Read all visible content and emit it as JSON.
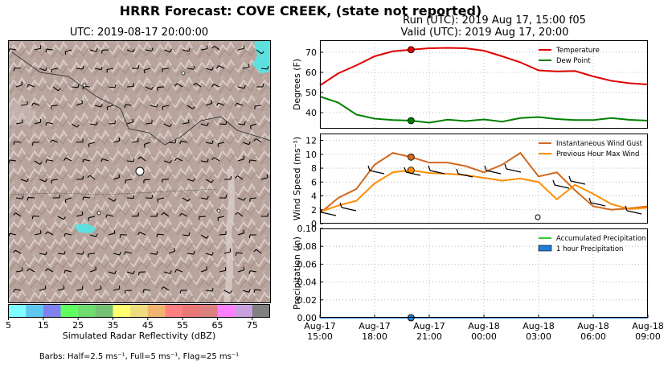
{
  "header": {
    "title": "HRRR Forecast: COVE CREEK, (state not reported)",
    "run": "Run (UTC): 2019 Aug 17, 15:00 f05",
    "valid": "Valid (UTC): 2019 Aug 17, 20:00"
  },
  "map": {
    "title": "UTC: 2019-08-17 20:00:00",
    "colorbar_label": "Simulated Radar Reflectivity (dBZ)",
    "colorbar_ticks": [
      "5",
      "15",
      "25",
      "35",
      "45",
      "55",
      "65",
      "75"
    ],
    "colorbar_colors": [
      "#80ffff",
      "#60c8f0",
      "#8080f0",
      "#60ff60",
      "#70dc70",
      "#74c074",
      "#ffff70",
      "#f0dc80",
      "#f0b470",
      "#ff8080",
      "#e87878",
      "#dc8080",
      "#ff80ff",
      "#c8a0e0",
      "#808080"
    ],
    "barbs_note": "Barbs: Half=2.5 ms⁻¹, Full=5 ms⁻¹, Flag=25 ms⁻¹"
  },
  "chart_data": [
    {
      "type": "line",
      "ylabel": "Degrees (F)",
      "ylim": [
        32,
        76
      ],
      "yticks": [
        40,
        50,
        60,
        70
      ],
      "x_hours": [
        0,
        1,
        2,
        3,
        4,
        5,
        6,
        7,
        8,
        9,
        10,
        11,
        12,
        13,
        14,
        15,
        16,
        17,
        18
      ],
      "marker_hour": 5,
      "legend": "top-right",
      "grid": true,
      "series": [
        {
          "name": "Temperature",
          "color": "#e00000",
          "values": [
            53.5,
            59.5,
            63.5,
            68,
            70.5,
            71.3,
            72,
            72.2,
            72,
            70.8,
            68,
            65,
            61,
            60.5,
            60.7,
            58,
            55.8,
            54.6,
            54
          ]
        },
        {
          "name": "Dew Point",
          "color": "#008000",
          "values": [
            48,
            45,
            39,
            37,
            36.3,
            36,
            35,
            36.5,
            35.8,
            36.6,
            35.5,
            37.3,
            37.8,
            36.8,
            36.3,
            36.3,
            37.3,
            36.4,
            36
          ]
        }
      ]
    },
    {
      "type": "line",
      "ylabel": "Wind Speed (ms⁻¹)",
      "ylim": [
        0,
        13
      ],
      "yticks": [
        0,
        2,
        4,
        6,
        8,
        10,
        12
      ],
      "x_hours": [
        0,
        1,
        2,
        3,
        4,
        5,
        6,
        7,
        8,
        9,
        10,
        11,
        12,
        13,
        14,
        15,
        16,
        17,
        18
      ],
      "marker_hour": 5,
      "legend": "top-right",
      "grid": true,
      "series": [
        {
          "name": "Instantaneous Wind Gust",
          "color": "#d2691e",
          "values": [
            1.5,
            3.7,
            5,
            8.5,
            10.2,
            9.6,
            8.8,
            8.8,
            8.3,
            7.4,
            8.5,
            10.2,
            6.8,
            7.4,
            4.8,
            2.5,
            2,
            2.2,
            2.5
          ]
        },
        {
          "name": "Previous Hour Max Wind",
          "color": "#ff8c00",
          "values": [
            1.7,
            2.6,
            3.3,
            5.8,
            7.4,
            7.7,
            7.3,
            7.2,
            7,
            6.6,
            6.2,
            6.5,
            6,
            3.5,
            5.6,
            4.3,
            2.8,
            2.1,
            2.3
          ]
        }
      ]
    },
    {
      "type": "line",
      "ylabel": "Precipitation (in)",
      "ylim": [
        0,
        0.1
      ],
      "yticks": [
        "0.00",
        "0.02",
        "0.04",
        "0.06",
        "0.08",
        "0.10"
      ],
      "x_ticks": [
        {
          "line1": "Aug-17",
          "line2": "15:00"
        },
        {
          "line1": "Aug-17",
          "line2": "18:00"
        },
        {
          "line1": "Aug-17",
          "line2": "21:00"
        },
        {
          "line1": "Aug-18",
          "line2": "00:00"
        },
        {
          "line1": "Aug-18",
          "line2": "03:00"
        },
        {
          "line1": "Aug-18",
          "line2": "06:00"
        },
        {
          "line1": "Aug-18",
          "line2": "09:00"
        }
      ],
      "x_hours": [
        0,
        1,
        2,
        3,
        4,
        5,
        6,
        7,
        8,
        9,
        10,
        11,
        12,
        13,
        14,
        15,
        16,
        17,
        18
      ],
      "marker_hour": 5,
      "legend": "top-right",
      "grid": true,
      "series": [
        {
          "name": "Accumulated Precipitation",
          "color": "#33cc33",
          "values": [
            0,
            0,
            0,
            0,
            0,
            0,
            0,
            0,
            0,
            0,
            0,
            0,
            0,
            0,
            0,
            0,
            0,
            0,
            0
          ]
        },
        {
          "name": "1 hour Precipitation",
          "color": "#1e7fd8",
          "values": [
            0,
            0,
            0,
            0,
            0,
            0,
            0,
            0,
            0,
            0,
            0,
            0,
            0,
            0,
            0,
            0,
            0,
            0,
            0
          ]
        }
      ]
    }
  ]
}
